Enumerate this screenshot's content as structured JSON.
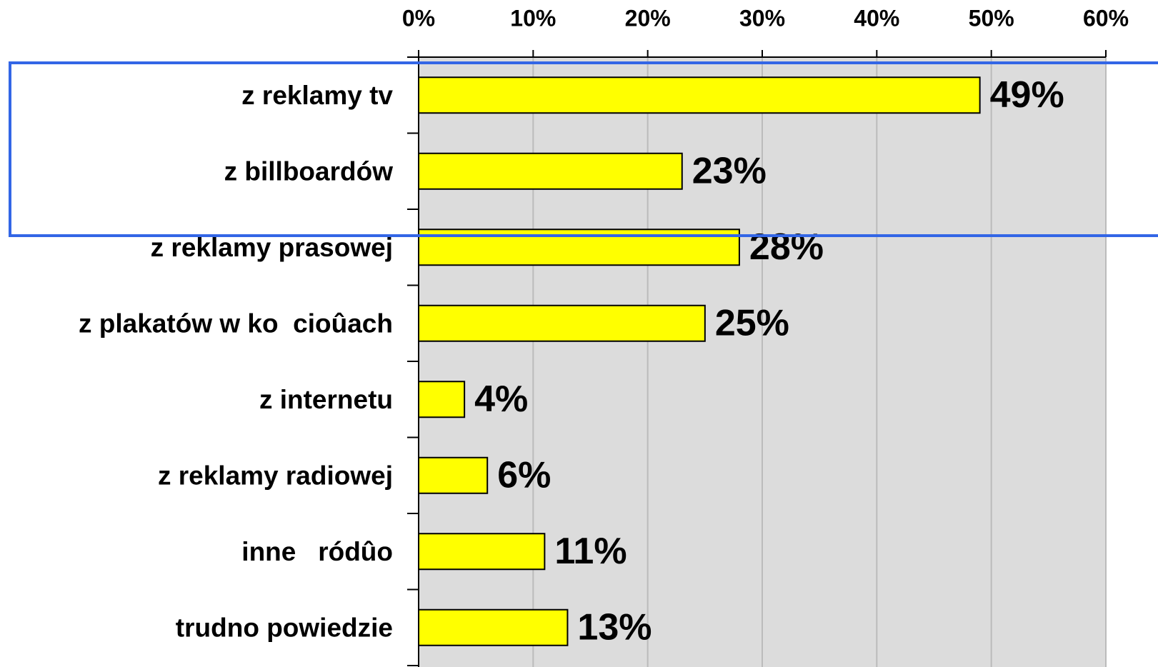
{
  "chart_data": {
    "type": "bar",
    "orientation": "horizontal",
    "categories": [
      "z reklamy tv",
      "z billboardów",
      "z reklamy prasowej",
      "z plakatów w ko  cioûach",
      "z internetu",
      "z reklamy radiowej",
      "inne   ródûo",
      "trudno powiedzie"
    ],
    "values": [
      49,
      23,
      28,
      25,
      4,
      6,
      11,
      13
    ],
    "value_labels": [
      "49%",
      "23%",
      "28%",
      "25%",
      "4%",
      "6%",
      "11%",
      "13%"
    ],
    "color": "#ffff00",
    "xlim": [
      0,
      60
    ],
    "xticks": [
      {
        "value": 0,
        "label": "0%"
      },
      {
        "value": 10,
        "label": "10%"
      },
      {
        "value": 20,
        "label": "20%"
      },
      {
        "value": 30,
        "label": "30%"
      },
      {
        "value": 40,
        "label": "40%"
      },
      {
        "value": 50,
        "label": "50%"
      },
      {
        "value": 60,
        "label": "60%"
      }
    ],
    "grid": true
  }
}
